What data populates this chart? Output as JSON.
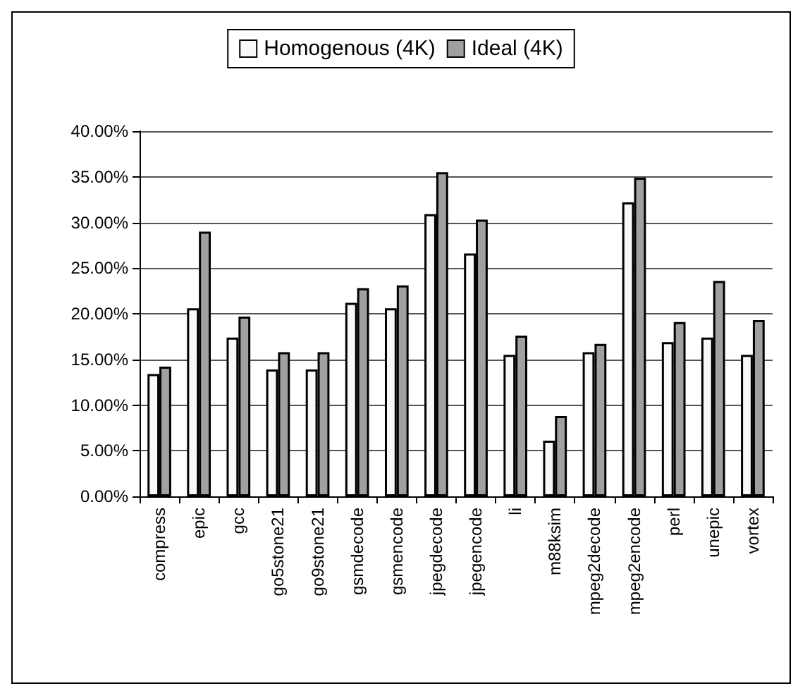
{
  "chart_data": {
    "type": "bar",
    "categories": [
      "compress",
      "epic",
      "gcc",
      "go5stone21",
      "go9stone21",
      "gsmdecode",
      "gsmencode",
      "jpegdecode",
      "jpegencode",
      "li",
      "m88ksim",
      "mpeg2decode",
      "mpeg2encode",
      "perl",
      "unepic",
      "vortex"
    ],
    "series": [
      {
        "name": "Homogenous (4K)",
        "color": "#f8f8f8",
        "values": [
          13.4,
          20.6,
          17.4,
          13.9,
          13.9,
          21.2,
          20.6,
          30.9,
          26.6,
          15.5,
          6.1,
          15.8,
          32.2,
          16.9,
          17.4,
          15.5
        ]
      },
      {
        "name": "Ideal (4K)",
        "color": "#a0a0a0",
        "values": [
          14.2,
          29.0,
          19.7,
          15.8,
          15.8,
          22.8,
          23.1,
          35.5,
          30.3,
          17.6,
          8.8,
          16.7,
          34.9,
          19.1,
          23.6,
          19.3
        ]
      }
    ],
    "ylim": [
      0,
      40
    ],
    "yticks": [
      {
        "value": 0,
        "label": "0.00%"
      },
      {
        "value": 5,
        "label": "5.00%"
      },
      {
        "value": 10,
        "label": "10.00%"
      },
      {
        "value": 15,
        "label": "15.00%"
      },
      {
        "value": 20,
        "label": "20.00%"
      },
      {
        "value": 25,
        "label": "25.00%"
      },
      {
        "value": 30,
        "label": "30.00%"
      },
      {
        "value": 35,
        "label": "35.00%"
      },
      {
        "value": 40,
        "label": "40.00%"
      }
    ],
    "grid": "y",
    "legend": "top"
  }
}
